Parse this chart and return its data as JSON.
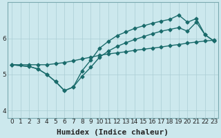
{
  "xlabel": "Humidex (Indice chaleur)",
  "bg_color": "#cce8ed",
  "grid_color": "#aacdd4",
  "line_color": "#1a6b6b",
  "xlim": [
    -0.5,
    23.5
  ],
  "ylim": [
    3.8,
    7.0
  ],
  "yticks": [
    4,
    5,
    6
  ],
  "xticks": [
    0,
    1,
    2,
    3,
    4,
    5,
    6,
    7,
    8,
    9,
    10,
    11,
    12,
    13,
    14,
    15,
    16,
    17,
    18,
    19,
    20,
    21,
    22,
    23
  ],
  "line1_x": [
    0,
    1,
    2,
    3,
    4,
    5,
    6,
    7,
    8,
    9,
    10,
    11,
    12,
    13,
    14,
    15,
    16,
    17,
    18,
    19,
    20,
    21,
    22,
    23
  ],
  "line1_y": [
    5.27,
    5.27,
    5.27,
    5.27,
    5.27,
    5.3,
    5.33,
    5.38,
    5.43,
    5.48,
    5.53,
    5.57,
    5.6,
    5.63,
    5.67,
    5.7,
    5.73,
    5.76,
    5.8,
    5.83,
    5.87,
    5.9,
    5.93,
    5.95
  ],
  "line2_x": [
    0,
    2,
    3,
    4,
    5,
    6,
    7,
    8,
    9,
    10,
    11,
    12,
    13,
    14,
    15,
    16,
    17,
    18,
    19,
    20,
    21,
    22,
    23
  ],
  "line2_y": [
    5.27,
    5.22,
    5.15,
    5.0,
    4.8,
    4.55,
    4.65,
    4.95,
    5.2,
    5.48,
    5.65,
    5.78,
    5.88,
    5.97,
    6.05,
    6.13,
    6.2,
    6.25,
    6.3,
    6.2,
    6.45,
    6.1,
    5.93
  ],
  "line3_x": [
    0,
    2,
    3,
    4,
    5,
    6,
    7,
    8,
    9,
    10,
    11,
    12,
    13,
    14,
    15,
    16,
    17,
    18,
    19,
    20,
    21,
    22,
    23
  ],
  "line3_y": [
    5.27,
    5.22,
    5.15,
    5.0,
    4.8,
    4.55,
    4.65,
    5.1,
    5.4,
    5.73,
    5.92,
    6.08,
    6.18,
    6.28,
    6.35,
    6.42,
    6.48,
    6.53,
    6.65,
    6.45,
    6.55,
    6.1,
    5.93
  ],
  "marker": "D",
  "markersize": 2.5,
  "linewidth": 1.0,
  "xlabel_fontsize": 8,
  "tick_fontsize": 6.5
}
